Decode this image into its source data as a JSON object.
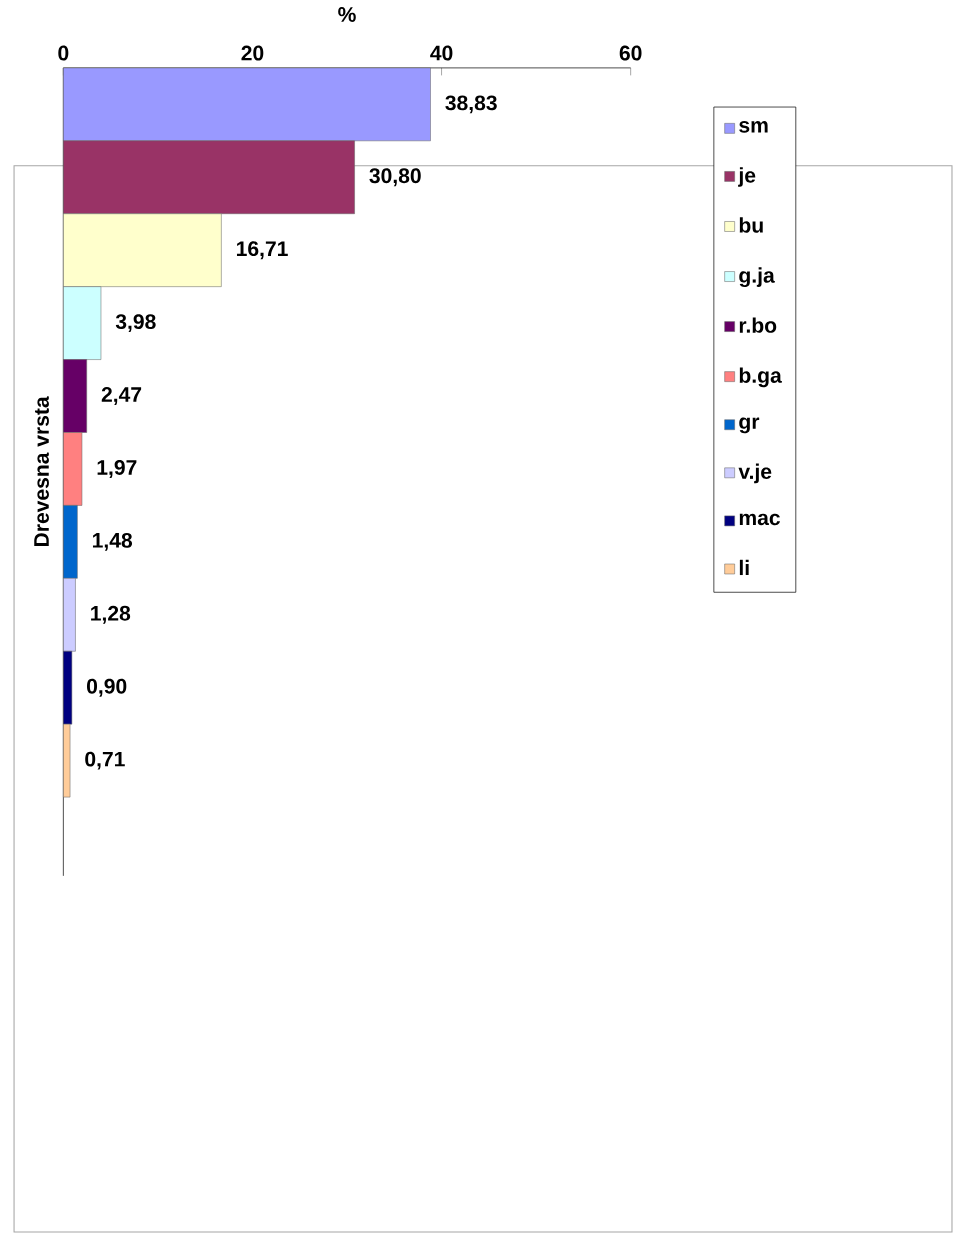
{
  "chart_data": {
    "type": "bar",
    "orientation": "horizontal",
    "xlabel": "%",
    "ylabel": "Drevesna vrsta",
    "categories": [
      null
    ],
    "xlim": [
      0,
      60
    ],
    "xticks": [
      0,
      20,
      40,
      60
    ],
    "tick_labels": "x",
    "legend": "right",
    "grid": false,
    "series": [
      {
        "name": "sm",
        "color": "#9999ff",
        "values": [
          38.83
        ],
        "value_labels": [
          "38,83"
        ]
      },
      {
        "name": "je",
        "color": "#993366",
        "values": [
          30.8
        ],
        "value_labels": [
          "30,80"
        ]
      },
      {
        "name": "bu",
        "color": "#ffffcc",
        "values": [
          16.71
        ],
        "value_labels": [
          "16,71"
        ]
      },
      {
        "name": "g.ja",
        "color": "#ccffff",
        "values": [
          3.98
        ],
        "value_labels": [
          "3,98"
        ]
      },
      {
        "name": "r.bo",
        "color": "#660066",
        "values": [
          2.47
        ],
        "value_labels": [
          "2,47"
        ]
      },
      {
        "name": "b.ga",
        "color": "#ff8080",
        "values": [
          1.97
        ],
        "value_labels": [
          "1,97"
        ]
      },
      {
        "name": "gr",
        "color": "#0066cc",
        "values": [
          1.48
        ],
        "value_labels": [
          "1,48"
        ]
      },
      {
        "name": "v.je",
        "color": "#ccccff",
        "values": [
          1.28
        ],
        "value_labels": [
          "1,28"
        ]
      },
      {
        "name": "mac",
        "color": "#000080",
        "values": [
          0.9
        ],
        "value_labels": [
          "0,90"
        ]
      },
      {
        "name": "li",
        "color": "#ffcc99",
        "values": [
          0.71
        ],
        "value_labels": [
          "0,71"
        ]
      }
    ]
  }
}
